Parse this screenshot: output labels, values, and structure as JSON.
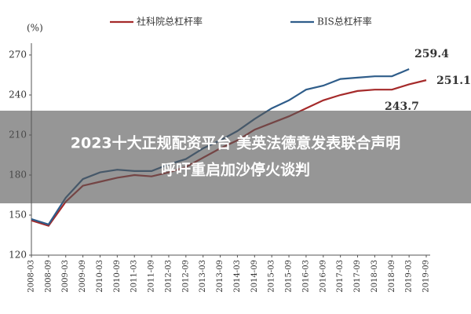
{
  "chart_data": {
    "type": "line",
    "y_unit_label": "(%)",
    "categories": [
      "2008-03",
      "2008-09",
      "2009-03",
      "2009-09",
      "2010-03",
      "2010-09",
      "2011-03",
      "2011-09",
      "2012-03",
      "2012-09",
      "2013-03",
      "2013-09",
      "2014-03",
      "2014-09",
      "2015-03",
      "2015-09",
      "2016-03",
      "2016-09",
      "2017-03",
      "2017-09",
      "2018-03",
      "2018-09",
      "2019-03",
      "2019-09"
    ],
    "series": [
      {
        "name": "社科院总杠杆率",
        "color": "#a52a2a",
        "values": [
          146,
          142,
          160,
          172,
          175,
          178,
          180,
          179,
          182,
          186,
          193,
          200,
          206,
          214,
          219,
          224,
          230,
          236,
          240,
          243,
          244,
          244,
          248,
          251.1
        ]
      },
      {
        "name": "BIS总杠杆率",
        "color": "#2f5d8a",
        "values": [
          147,
          143,
          163,
          177,
          182,
          184,
          183,
          183,
          188,
          192,
          200,
          206,
          213,
          222,
          230,
          236,
          244,
          247,
          252,
          253,
          254,
          254,
          259.4,
          null
        ]
      }
    ],
    "annotations": [
      "259.4",
      "251.1",
      "243.7"
    ],
    "ylim": [
      120,
      270
    ],
    "yticks": [
      120,
      150,
      180,
      210,
      240,
      270
    ],
    "grid": false,
    "overlay": {
      "lines": [
        "2023十大正规配资平台 美英法德意发表联合声明",
        "呼吁重启加沙停火谈判"
      ]
    }
  }
}
